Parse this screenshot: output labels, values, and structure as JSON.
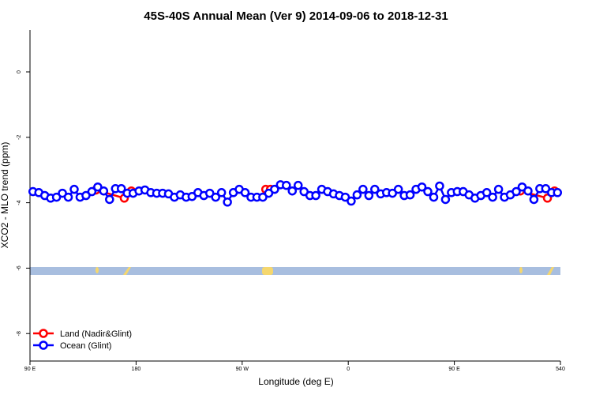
{
  "chart_data": {
    "type": "line",
    "title": "45S-40S Annual Mean (Ver 9)   2014-09-06 to 2018-12-31",
    "x_label": "Longitude (deg E)",
    "y_label": "XCO2 - MLO trend (ppm)",
    "xlim": [
      90,
      540
    ],
    "ylim": [
      -8.84,
      1.28
    ],
    "xticks": [
      {
        "value": 90,
        "label": "90 E"
      },
      180,
      {
        "value": 270,
        "label": "90 W"
      },
      {
        "value": 360,
        "label": "0"
      },
      {
        "value": 450,
        "label": "90 E"
      },
      540
    ],
    "yticks": [
      -8,
      -6,
      -4,
      -2,
      0
    ],
    "legend": "bottom-left",
    "series": [
      {
        "name": "Land (Nadir&Glint)",
        "color": "#ff0000",
        "x": [
          146,
          170,
          176,
          290,
          294,
          506,
          529,
          535
        ],
        "values": [
          -3.61,
          -3.86,
          -3.64,
          -3.59,
          -3.59,
          -3.64,
          -3.86,
          -3.64
        ]
      },
      {
        "name": "Ocean (Glint)",
        "color": "#0000ff",
        "x": [
          92.5,
          97.5,
          102.5,
          107.5,
          112.5,
          117.5,
          122.5,
          127.5,
          132.5,
          137.5,
          142.5,
          147.5,
          152.5,
          157.5,
          162.5,
          167.5,
          172.5,
          177.5,
          182.5,
          187.5,
          192.5,
          197.5,
          202.5,
          207.5,
          212.5,
          217.5,
          222.5,
          227.5,
          232.5,
          237.5,
          242.5,
          247.5,
          252.5,
          257.5,
          262.5,
          267.5,
          272.5,
          277.5,
          282.5,
          287.5,
          292.5,
          297.5,
          302.5,
          307.5,
          312.5,
          317.5,
          322.5,
          327.5,
          332.5,
          337.5,
          342.5,
          347.5,
          352.5,
          357.5,
          362.5,
          367.5,
          372.5,
          377.5,
          382.5,
          387.5,
          392.5,
          397.5,
          402.5,
          407.5,
          412.5,
          417.5,
          422.5,
          427.5,
          432.5,
          437.5,
          442.5,
          447.5,
          452.5,
          457.5,
          462.5,
          467.5,
          472.5,
          477.5,
          482.5,
          487.5,
          492.5,
          497.5,
          502.5,
          507.5,
          512.5,
          517.5,
          522.5,
          527.5,
          532.5,
          537.5
        ],
        "values": [
          -3.66,
          -3.69,
          -3.78,
          -3.86,
          -3.83,
          -3.71,
          -3.83,
          -3.59,
          -3.83,
          -3.78,
          -3.66,
          -3.52,
          -3.64,
          -3.9,
          -3.57,
          -3.57,
          -3.71,
          -3.71,
          -3.64,
          -3.61,
          -3.69,
          -3.71,
          -3.71,
          -3.73,
          -3.83,
          -3.76,
          -3.83,
          -3.81,
          -3.69,
          -3.78,
          -3.71,
          -3.83,
          -3.69,
          -3.98,
          -3.69,
          -3.59,
          -3.69,
          -3.83,
          -3.83,
          -3.83,
          -3.71,
          -3.59,
          -3.45,
          -3.47,
          -3.64,
          -3.47,
          -3.66,
          -3.78,
          -3.78,
          -3.59,
          -3.66,
          -3.73,
          -3.78,
          -3.83,
          -3.95,
          -3.76,
          -3.59,
          -3.78,
          -3.59,
          -3.73,
          -3.69,
          -3.71,
          -3.59,
          -3.78,
          -3.76,
          -3.59,
          -3.52,
          -3.66,
          -3.83,
          -3.49,
          -3.9,
          -3.69,
          -3.66,
          -3.66,
          -3.76,
          -3.86,
          -3.78,
          -3.69,
          -3.83,
          -3.59,
          -3.83,
          -3.76,
          -3.66,
          -3.52,
          -3.64,
          -3.9,
          -3.57,
          -3.57,
          -3.69,
          -3.69
        ]
      }
    ]
  }
}
